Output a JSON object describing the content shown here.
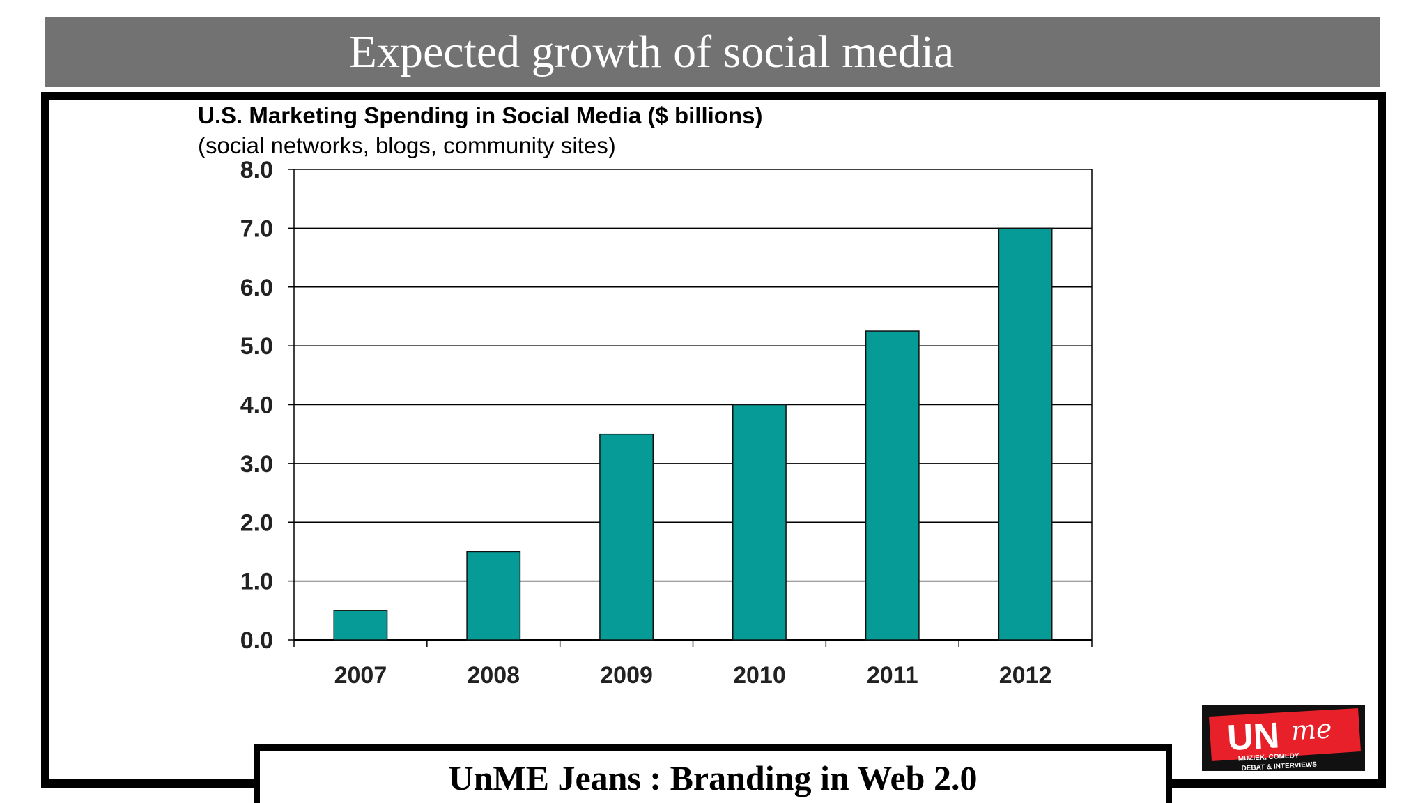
{
  "slide": {
    "title": "Expected growth of  social media",
    "footer": "UnME Jeans : Branding in Web 2.0",
    "logo_text": "UNme",
    "logo_tagline_1": "MUZIEK, COMEDY",
    "logo_tagline_2": "DEBAT & INTERVIEWS"
  },
  "chart_data": {
    "type": "bar",
    "title": "U.S. Marketing Spending in Social Media ($ billions)",
    "subtitle": "(social networks, blogs, community sites)",
    "categories": [
      "2007",
      "2008",
      "2009",
      "2010",
      "2011",
      "2012"
    ],
    "values": [
      0.5,
      1.5,
      3.5,
      4.0,
      5.25,
      7.0
    ],
    "ylim": [
      0,
      8
    ],
    "yticks": [
      "0.0",
      "1.0",
      "2.0",
      "3.0",
      "4.0",
      "5.0",
      "6.0",
      "7.0",
      "8.0"
    ],
    "grid": true,
    "bar_color": "#069b96",
    "legend": "none"
  },
  "colors": {
    "title_bar": "#737272",
    "logo_red": "#e8202a"
  }
}
